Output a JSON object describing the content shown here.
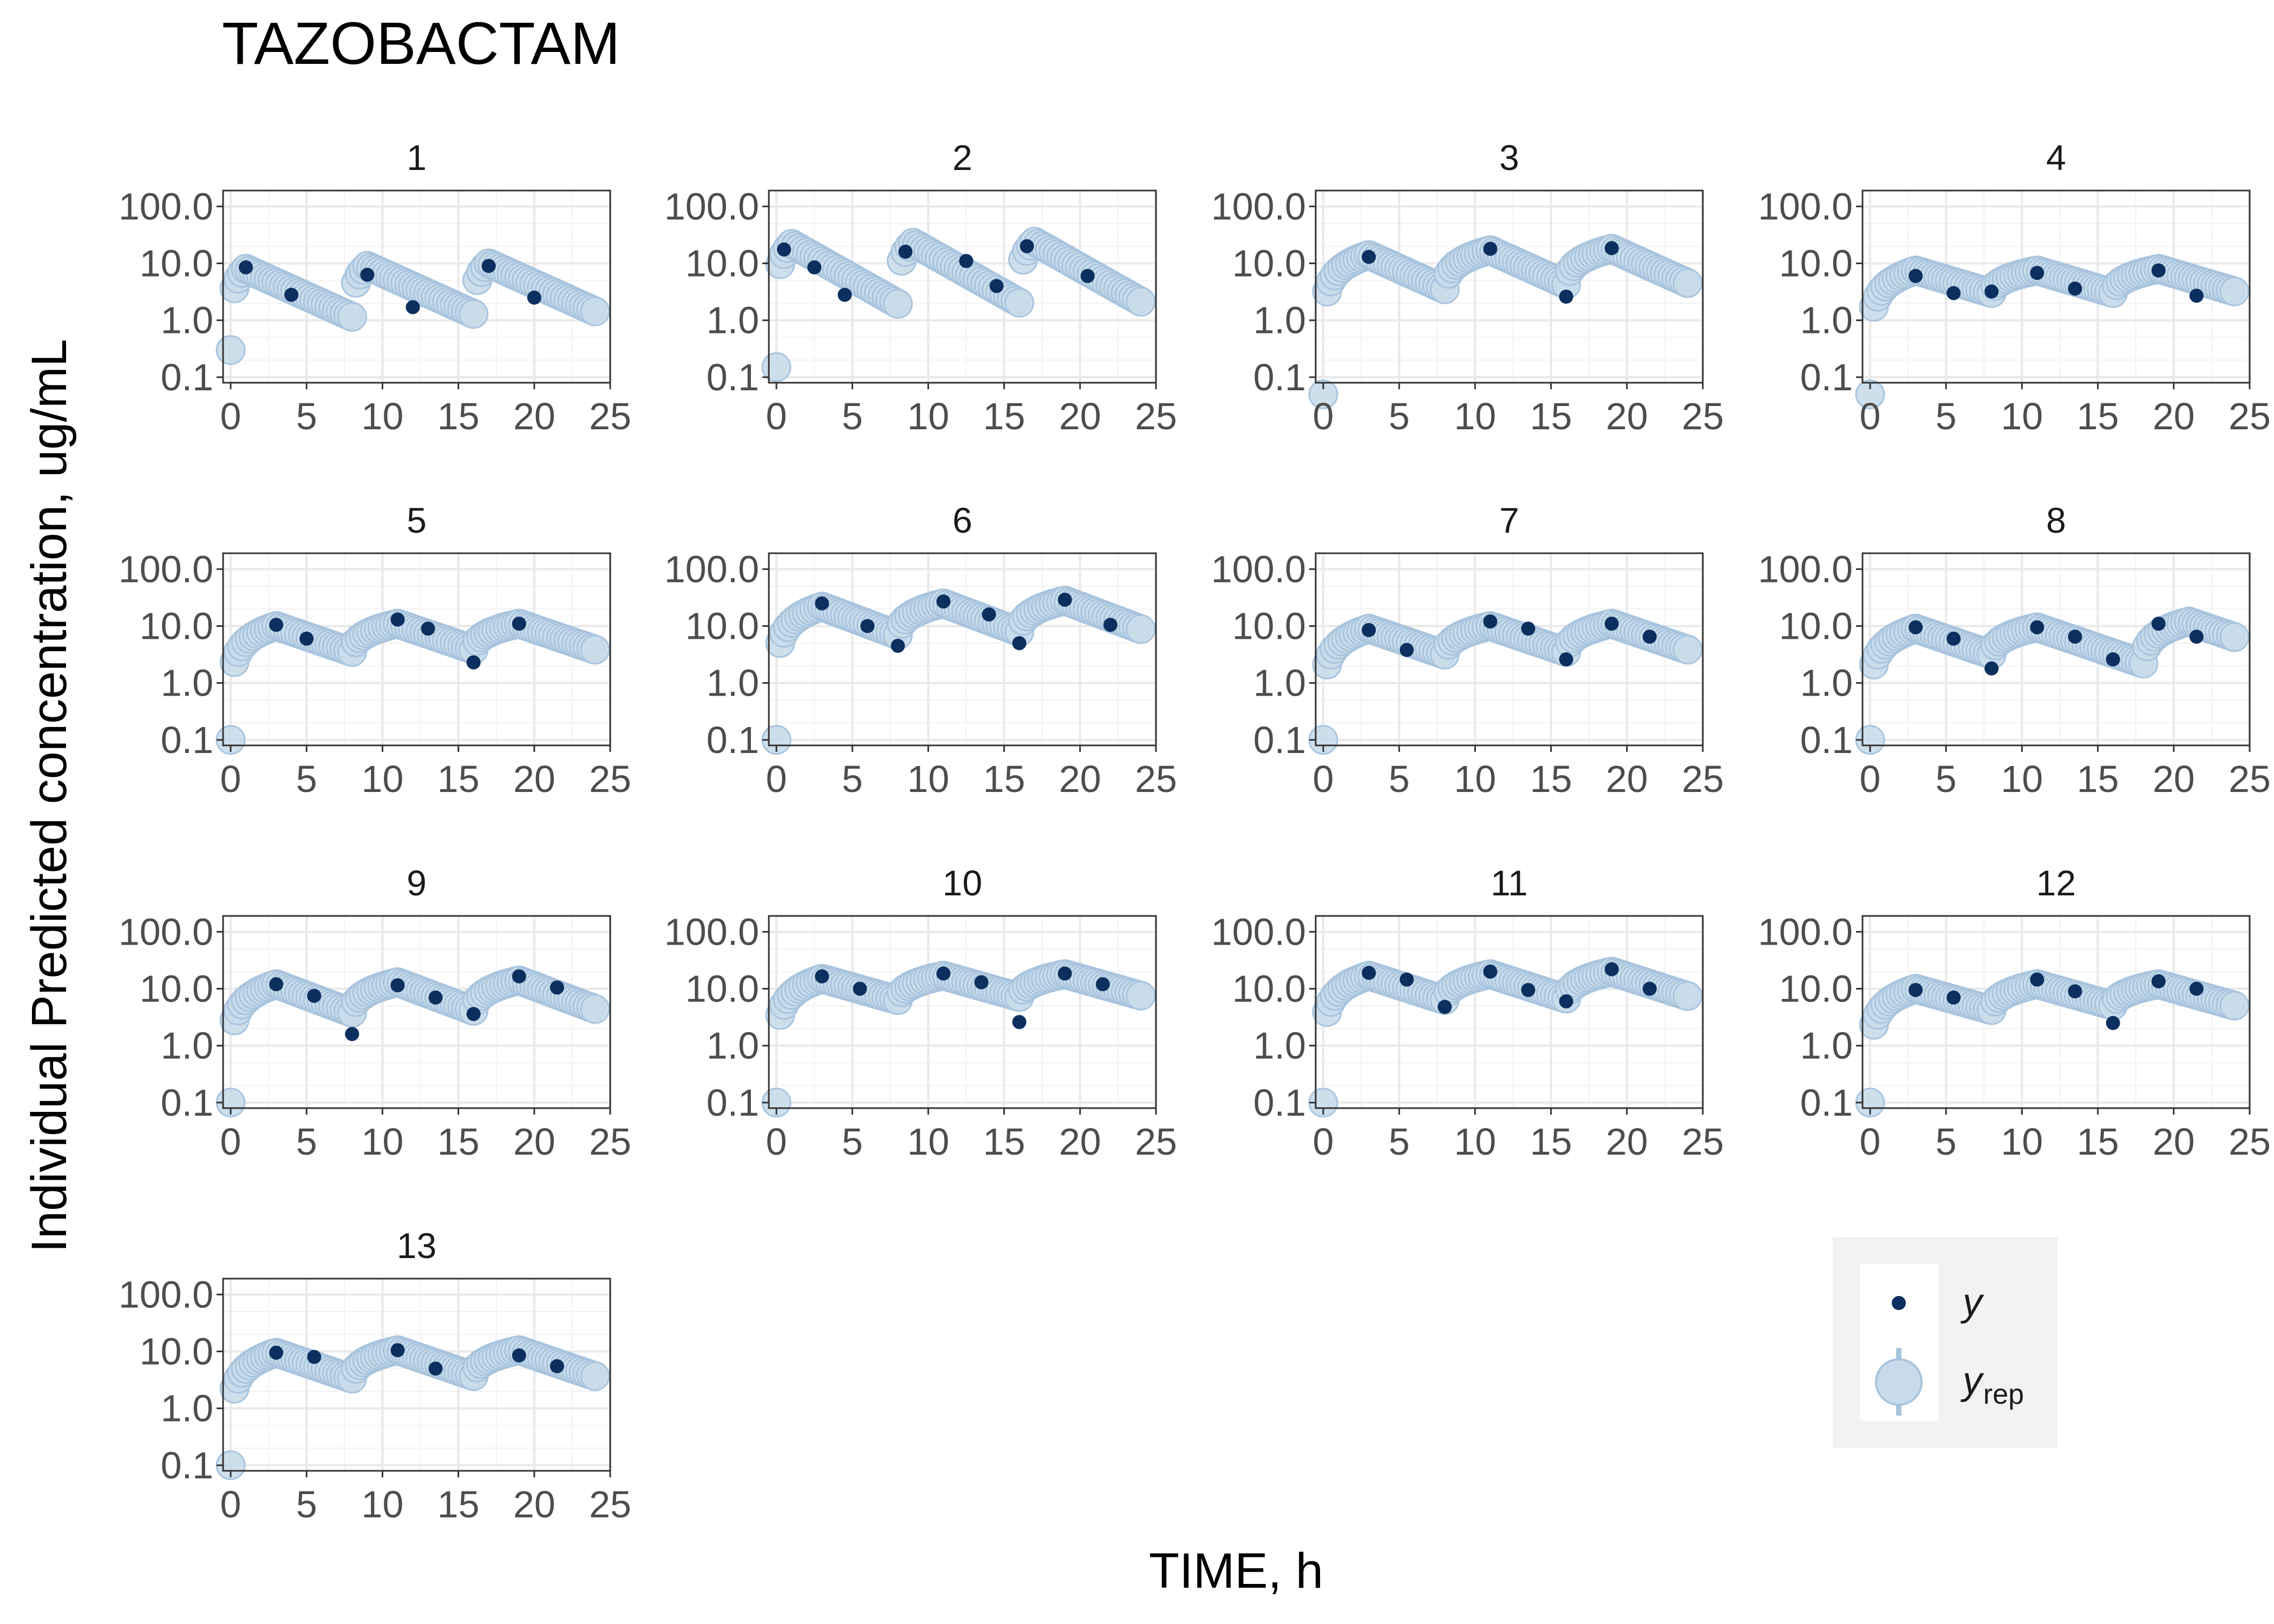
{
  "chart_data": {
    "type": "scatter",
    "title": "TAZOBACTAM",
    "xlabel": "TIME, h",
    "ylabel": "Individual Predicted concentration, ug/mL",
    "yscale": "log",
    "xlim": [
      -0.5,
      25
    ],
    "ylim": [
      0.08,
      190
    ],
    "xticks": [
      "0",
      "5",
      "10",
      "15",
      "20",
      "25"
    ],
    "yticks": [
      "0.1",
      "1.0",
      "10.0",
      "100.0"
    ],
    "grid": true,
    "legend": {
      "position": "bottom-right",
      "entries": [
        {
          "key": "y",
          "label": "y",
          "sub": ""
        },
        {
          "key": "yrep",
          "label": "y",
          "sub": "rep"
        }
      ]
    },
    "colors": {
      "observed": "#0b2f5e",
      "replicated_fill": "#c9dbea",
      "replicated_stroke": "#a8c4de",
      "legend_bg": "#f2f2f2",
      "grid": "#e9e9e9"
    },
    "panels": [
      {
        "label": "1",
        "tinf": 1,
        "doses": [
          0,
          8,
          16
        ],
        "peaks": [
          8,
          9,
          10
        ],
        "halflife": 2.5,
        "t0": 0.3,
        "observed": [
          [
            1,
            8.5
          ],
          [
            4,
            2.8
          ],
          [
            9,
            6.3
          ],
          [
            12,
            1.7
          ],
          [
            17,
            9.0
          ],
          [
            20,
            2.5
          ]
        ]
      },
      {
        "label": "2",
        "tinf": 1,
        "doses": [
          0,
          8,
          16
        ],
        "peaks": [
          22,
          23,
          24
        ],
        "halflife": 2.0,
        "t0": 0.15,
        "observed": [
          [
            0.5,
            17.5
          ],
          [
            2.5,
            8.5
          ],
          [
            4.5,
            2.8
          ],
          [
            8.5,
            16.0
          ],
          [
            12.5,
            11.0
          ],
          [
            14.5,
            4.0
          ],
          [
            16.5,
            20.0
          ],
          [
            20.5,
            6.0
          ]
        ]
      },
      {
        "label": "3",
        "tinf": 3,
        "doses": [
          0,
          8,
          16
        ],
        "peaks": [
          14,
          17,
          18
        ],
        "halflife": 2.5,
        "t0": 0.05,
        "observed": [
          [
            3,
            13.0
          ],
          [
            11,
            18.0
          ],
          [
            16,
            2.6
          ],
          [
            19,
            18.5
          ]
        ]
      },
      {
        "label": "4",
        "tinf": 3,
        "doses": [
          0,
          8,
          16
        ],
        "peaks": [
          7.5,
          7.5,
          8
        ],
        "halflife": 3.8,
        "t0": 0.05,
        "observed": [
          [
            3,
            6.0
          ],
          [
            5.5,
            3.0
          ],
          [
            8,
            3.2
          ],
          [
            11,
            6.8
          ],
          [
            13.5,
            3.6
          ],
          [
            19,
            7.5
          ],
          [
            21.5,
            2.7
          ]
        ]
      },
      {
        "label": "5",
        "tinf": 3,
        "doses": [
          0,
          8,
          16
        ],
        "peaks": [
          10,
          11,
          11
        ],
        "halflife": 3.3,
        "t0": 0.1,
        "observed": [
          [
            3,
            10.5
          ],
          [
            5,
            6.0
          ],
          [
            11,
            13.0
          ],
          [
            13,
            9.0
          ],
          [
            16,
            2.3
          ],
          [
            19,
            11.0
          ]
        ]
      },
      {
        "label": "6",
        "tinf": 3,
        "doses": [
          0,
          8,
          16
        ],
        "peaks": [
          22,
          25,
          28
        ],
        "halflife": 3.0,
        "t0": 0.1,
        "observed": [
          [
            3,
            25.0
          ],
          [
            6,
            10.0
          ],
          [
            8,
            4.5
          ],
          [
            11,
            27.0
          ],
          [
            14,
            16.0
          ],
          [
            16,
            5.0
          ],
          [
            19,
            29.0
          ],
          [
            22,
            10.5
          ]
        ]
      },
      {
        "label": "7",
        "tinf": 3,
        "doses": [
          0,
          8,
          16
        ],
        "peaks": [
          9,
          10,
          11
        ],
        "halflife": 3.3,
        "t0": 0.1,
        "observed": [
          [
            3,
            8.5
          ],
          [
            5.5,
            3.8
          ],
          [
            11,
            12.0
          ],
          [
            13.5,
            9.0
          ],
          [
            16,
            2.6
          ],
          [
            19,
            11.0
          ],
          [
            21.5,
            6.5
          ]
        ]
      },
      {
        "label": "8",
        "tinf": 3,
        "doses": [
          0,
          8,
          18
        ],
        "peaks": [
          9,
          9.5,
          12
        ],
        "halflife": 3.3,
        "t0": 0.1,
        "observed": [
          [
            3,
            9.5
          ],
          [
            5.5,
            6.0
          ],
          [
            8,
            1.8
          ],
          [
            11,
            9.5
          ],
          [
            13.5,
            6.5
          ],
          [
            16,
            2.6
          ],
          [
            19,
            11.0
          ],
          [
            21.5,
            6.5
          ]
        ]
      },
      {
        "label": "9",
        "tinf": 3,
        "doses": [
          0,
          8,
          16
        ],
        "peaks": [
          12,
          13,
          14
        ],
        "halflife": 3.0,
        "t0": 0.1,
        "observed": [
          [
            3,
            12.0
          ],
          [
            5.5,
            7.5
          ],
          [
            8,
            1.6
          ],
          [
            11,
            11.5
          ],
          [
            13.5,
            7.0
          ],
          [
            16,
            3.6
          ],
          [
            19,
            16.5
          ],
          [
            21.5,
            10.5
          ]
        ]
      },
      {
        "label": "10",
        "tinf": 3,
        "doses": [
          0,
          8,
          16
        ],
        "peaks": [
          15,
          17,
          18
        ],
        "halflife": 4.0,
        "t0": 0.1,
        "observed": [
          [
            3,
            16.5
          ],
          [
            5.5,
            10.0
          ],
          [
            11,
            18.5
          ],
          [
            13.5,
            13.0
          ],
          [
            16,
            2.6
          ],
          [
            19,
            18.5
          ],
          [
            21.5,
            12.0
          ]
        ]
      },
      {
        "label": "11",
        "tinf": 3,
        "doses": [
          0,
          8,
          16
        ],
        "peaks": [
          17,
          18,
          20
        ],
        "halflife": 3.5,
        "t0": 0.1,
        "observed": [
          [
            3,
            19.0
          ],
          [
            5.5,
            14.5
          ],
          [
            8,
            4.8
          ],
          [
            11,
            20.0
          ],
          [
            13.5,
            9.5
          ],
          [
            16,
            6.0
          ],
          [
            19,
            22.0
          ],
          [
            21.5,
            10.0
          ]
        ]
      },
      {
        "label": "12",
        "tinf": 3,
        "doses": [
          0,
          8,
          16
        ],
        "peaks": [
          10,
          12,
          12
        ],
        "halflife": 4.0,
        "t0": 0.1,
        "observed": [
          [
            3,
            9.5
          ],
          [
            5.5,
            7.0
          ],
          [
            11,
            14.5
          ],
          [
            13.5,
            9.0
          ],
          [
            16,
            2.5
          ],
          [
            19,
            13.5
          ],
          [
            21.5,
            10.0
          ]
        ]
      },
      {
        "label": "13",
        "tinf": 3,
        "doses": [
          0,
          8,
          16
        ],
        "peaks": [
          9.5,
          10.5,
          10.5
        ],
        "halflife": 3.3,
        "t0": 0.1,
        "observed": [
          [
            3,
            9.5
          ],
          [
            5.5,
            8.0
          ],
          [
            11,
            10.5
          ],
          [
            13.5,
            5.0
          ],
          [
            19,
            8.5
          ],
          [
            21.5,
            5.5
          ]
        ]
      }
    ]
  }
}
